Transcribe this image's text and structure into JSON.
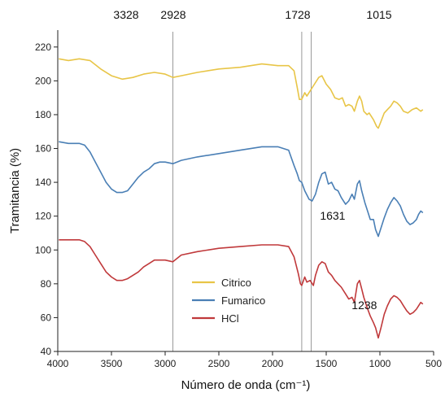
{
  "chart_data": {
    "type": "line",
    "xlabel": "Número de onda (cm⁻¹)",
    "ylabel": "Tramitancia (%)",
    "xlim": [
      4000,
      500
    ],
    "ylim": [
      40,
      230
    ],
    "x_reversed": true,
    "x_ticks": [
      4000,
      3500,
      3000,
      2500,
      2000,
      1500,
      1000,
      500
    ],
    "y_ticks": [
      40,
      60,
      80,
      100,
      120,
      140,
      160,
      180,
      200,
      220
    ],
    "grid": false,
    "legend_position": "bottom-center",
    "reference_lines": [
      {
        "x": 2928,
        "label": "2928"
      },
      {
        "x": 1728,
        "label": "1728"
      },
      {
        "x": 1640,
        "label": ""
      }
    ],
    "top_annotations": [
      {
        "x": 3328,
        "label": "3328"
      },
      {
        "x": 2928,
        "label": "2928"
      },
      {
        "x": 1728,
        "label": "1728"
      },
      {
        "x": 1015,
        "label": "1015"
      }
    ],
    "annotations": [
      {
        "text": "1631",
        "x": 1440,
        "y": 118
      },
      {
        "text": "1238",
        "x": 1145,
        "y": 65
      }
    ],
    "series": [
      {
        "name": "Citrico",
        "color": "#e8c547",
        "points": [
          [
            3990,
            213
          ],
          [
            3900,
            212
          ],
          [
            3800,
            213
          ],
          [
            3700,
            212
          ],
          [
            3600,
            207
          ],
          [
            3500,
            203
          ],
          [
            3400,
            201
          ],
          [
            3300,
            202
          ],
          [
            3200,
            204
          ],
          [
            3100,
            205
          ],
          [
            3000,
            204
          ],
          [
            2928,
            202
          ],
          [
            2850,
            203
          ],
          [
            2700,
            205
          ],
          [
            2500,
            207
          ],
          [
            2300,
            208
          ],
          [
            2100,
            210
          ],
          [
            1950,
            209
          ],
          [
            1850,
            209
          ],
          [
            1800,
            206
          ],
          [
            1770,
            196
          ],
          [
            1750,
            189
          ],
          [
            1728,
            189
          ],
          [
            1700,
            193
          ],
          [
            1680,
            191
          ],
          [
            1650,
            194
          ],
          [
            1610,
            198
          ],
          [
            1570,
            202
          ],
          [
            1540,
            203
          ],
          [
            1500,
            198
          ],
          [
            1460,
            195
          ],
          [
            1420,
            190
          ],
          [
            1380,
            189
          ],
          [
            1350,
            190
          ],
          [
            1320,
            185
          ],
          [
            1290,
            186
          ],
          [
            1260,
            185
          ],
          [
            1238,
            182
          ],
          [
            1210,
            188
          ],
          [
            1190,
            191
          ],
          [
            1170,
            188
          ],
          [
            1150,
            182
          ],
          [
            1120,
            180
          ],
          [
            1100,
            181
          ],
          [
            1060,
            177
          ],
          [
            1030,
            173
          ],
          [
            1015,
            172
          ],
          [
            990,
            176
          ],
          [
            960,
            181
          ],
          [
            930,
            183
          ],
          [
            900,
            185
          ],
          [
            870,
            188
          ],
          [
            840,
            187
          ],
          [
            810,
            185
          ],
          [
            780,
            182
          ],
          [
            740,
            181
          ],
          [
            700,
            183
          ],
          [
            660,
            184
          ],
          [
            620,
            182
          ],
          [
            600,
            183
          ]
        ]
      },
      {
        "name": "Fumarico",
        "color": "#4a7fb5",
        "points": [
          [
            3990,
            164
          ],
          [
            3900,
            163
          ],
          [
            3800,
            163
          ],
          [
            3750,
            162
          ],
          [
            3700,
            158
          ],
          [
            3650,
            152
          ],
          [
            3600,
            146
          ],
          [
            3550,
            140
          ],
          [
            3500,
            136
          ],
          [
            3450,
            134
          ],
          [
            3400,
            134
          ],
          [
            3350,
            135
          ],
          [
            3300,
            139
          ],
          [
            3250,
            143
          ],
          [
            3200,
            146
          ],
          [
            3150,
            148
          ],
          [
            3100,
            151
          ],
          [
            3050,
            152
          ],
          [
            3000,
            152
          ],
          [
            2928,
            151
          ],
          [
            2850,
            153
          ],
          [
            2700,
            155
          ],
          [
            2500,
            157
          ],
          [
            2300,
            159
          ],
          [
            2100,
            161
          ],
          [
            1950,
            161
          ],
          [
            1850,
            159
          ],
          [
            1800,
            150
          ],
          [
            1770,
            145
          ],
          [
            1750,
            141
          ],
          [
            1728,
            140
          ],
          [
            1700,
            135
          ],
          [
            1660,
            130
          ],
          [
            1631,
            129
          ],
          [
            1600,
            133
          ],
          [
            1570,
            140
          ],
          [
            1540,
            145
          ],
          [
            1510,
            146
          ],
          [
            1480,
            139
          ],
          [
            1450,
            140
          ],
          [
            1420,
            136
          ],
          [
            1390,
            135
          ],
          [
            1360,
            131
          ],
          [
            1320,
            127
          ],
          [
            1290,
            129
          ],
          [
            1260,
            133
          ],
          [
            1238,
            130
          ],
          [
            1210,
            139
          ],
          [
            1190,
            141
          ],
          [
            1170,
            135
          ],
          [
            1140,
            128
          ],
          [
            1110,
            122
          ],
          [
            1090,
            118
          ],
          [
            1060,
            118
          ],
          [
            1040,
            112
          ],
          [
            1015,
            108
          ],
          [
            990,
            113
          ],
          [
            960,
            119
          ],
          [
            930,
            124
          ],
          [
            900,
            128
          ],
          [
            870,
            131
          ],
          [
            840,
            129
          ],
          [
            810,
            126
          ],
          [
            780,
            121
          ],
          [
            750,
            117
          ],
          [
            720,
            115
          ],
          [
            690,
            116
          ],
          [
            660,
            118
          ],
          [
            640,
            121
          ],
          [
            620,
            123
          ],
          [
            600,
            122
          ]
        ]
      },
      {
        "name": "HCl",
        "color": "#c0393b",
        "points": [
          [
            3990,
            106
          ],
          [
            3900,
            106
          ],
          [
            3800,
            106
          ],
          [
            3750,
            105
          ],
          [
            3700,
            102
          ],
          [
            3650,
            97
          ],
          [
            3600,
            92
          ],
          [
            3550,
            87
          ],
          [
            3500,
            84
          ],
          [
            3450,
            82
          ],
          [
            3400,
            82
          ],
          [
            3350,
            83
          ],
          [
            3300,
            85
          ],
          [
            3250,
            87
          ],
          [
            3200,
            90
          ],
          [
            3150,
            92
          ],
          [
            3100,
            94
          ],
          [
            3050,
            94
          ],
          [
            3000,
            94
          ],
          [
            2928,
            93
          ],
          [
            2850,
            97
          ],
          [
            2700,
            99
          ],
          [
            2500,
            101
          ],
          [
            2300,
            102
          ],
          [
            2100,
            103
          ],
          [
            1950,
            103
          ],
          [
            1850,
            102
          ],
          [
            1800,
            96
          ],
          [
            1760,
            86
          ],
          [
            1740,
            80
          ],
          [
            1728,
            79
          ],
          [
            1700,
            84
          ],
          [
            1680,
            81
          ],
          [
            1650,
            82
          ],
          [
            1620,
            79
          ],
          [
            1600,
            85
          ],
          [
            1570,
            91
          ],
          [
            1540,
            93
          ],
          [
            1510,
            92
          ],
          [
            1480,
            87
          ],
          [
            1450,
            85
          ],
          [
            1420,
            82
          ],
          [
            1390,
            80
          ],
          [
            1360,
            78
          ],
          [
            1320,
            74
          ],
          [
            1290,
            71
          ],
          [
            1260,
            72
          ],
          [
            1238,
            69
          ],
          [
            1210,
            80
          ],
          [
            1190,
            82
          ],
          [
            1170,
            77
          ],
          [
            1150,
            72
          ],
          [
            1120,
            66
          ],
          [
            1090,
            61
          ],
          [
            1060,
            57
          ],
          [
            1040,
            54
          ],
          [
            1015,
            48
          ],
          [
            990,
            54
          ],
          [
            960,
            62
          ],
          [
            930,
            67
          ],
          [
            900,
            71
          ],
          [
            870,
            73
          ],
          [
            840,
            72
          ],
          [
            810,
            70
          ],
          [
            780,
            67
          ],
          [
            750,
            64
          ],
          [
            720,
            62
          ],
          [
            690,
            63
          ],
          [
            660,
            65
          ],
          [
            640,
            67
          ],
          [
            620,
            69
          ],
          [
            600,
            68
          ]
        ]
      }
    ]
  }
}
